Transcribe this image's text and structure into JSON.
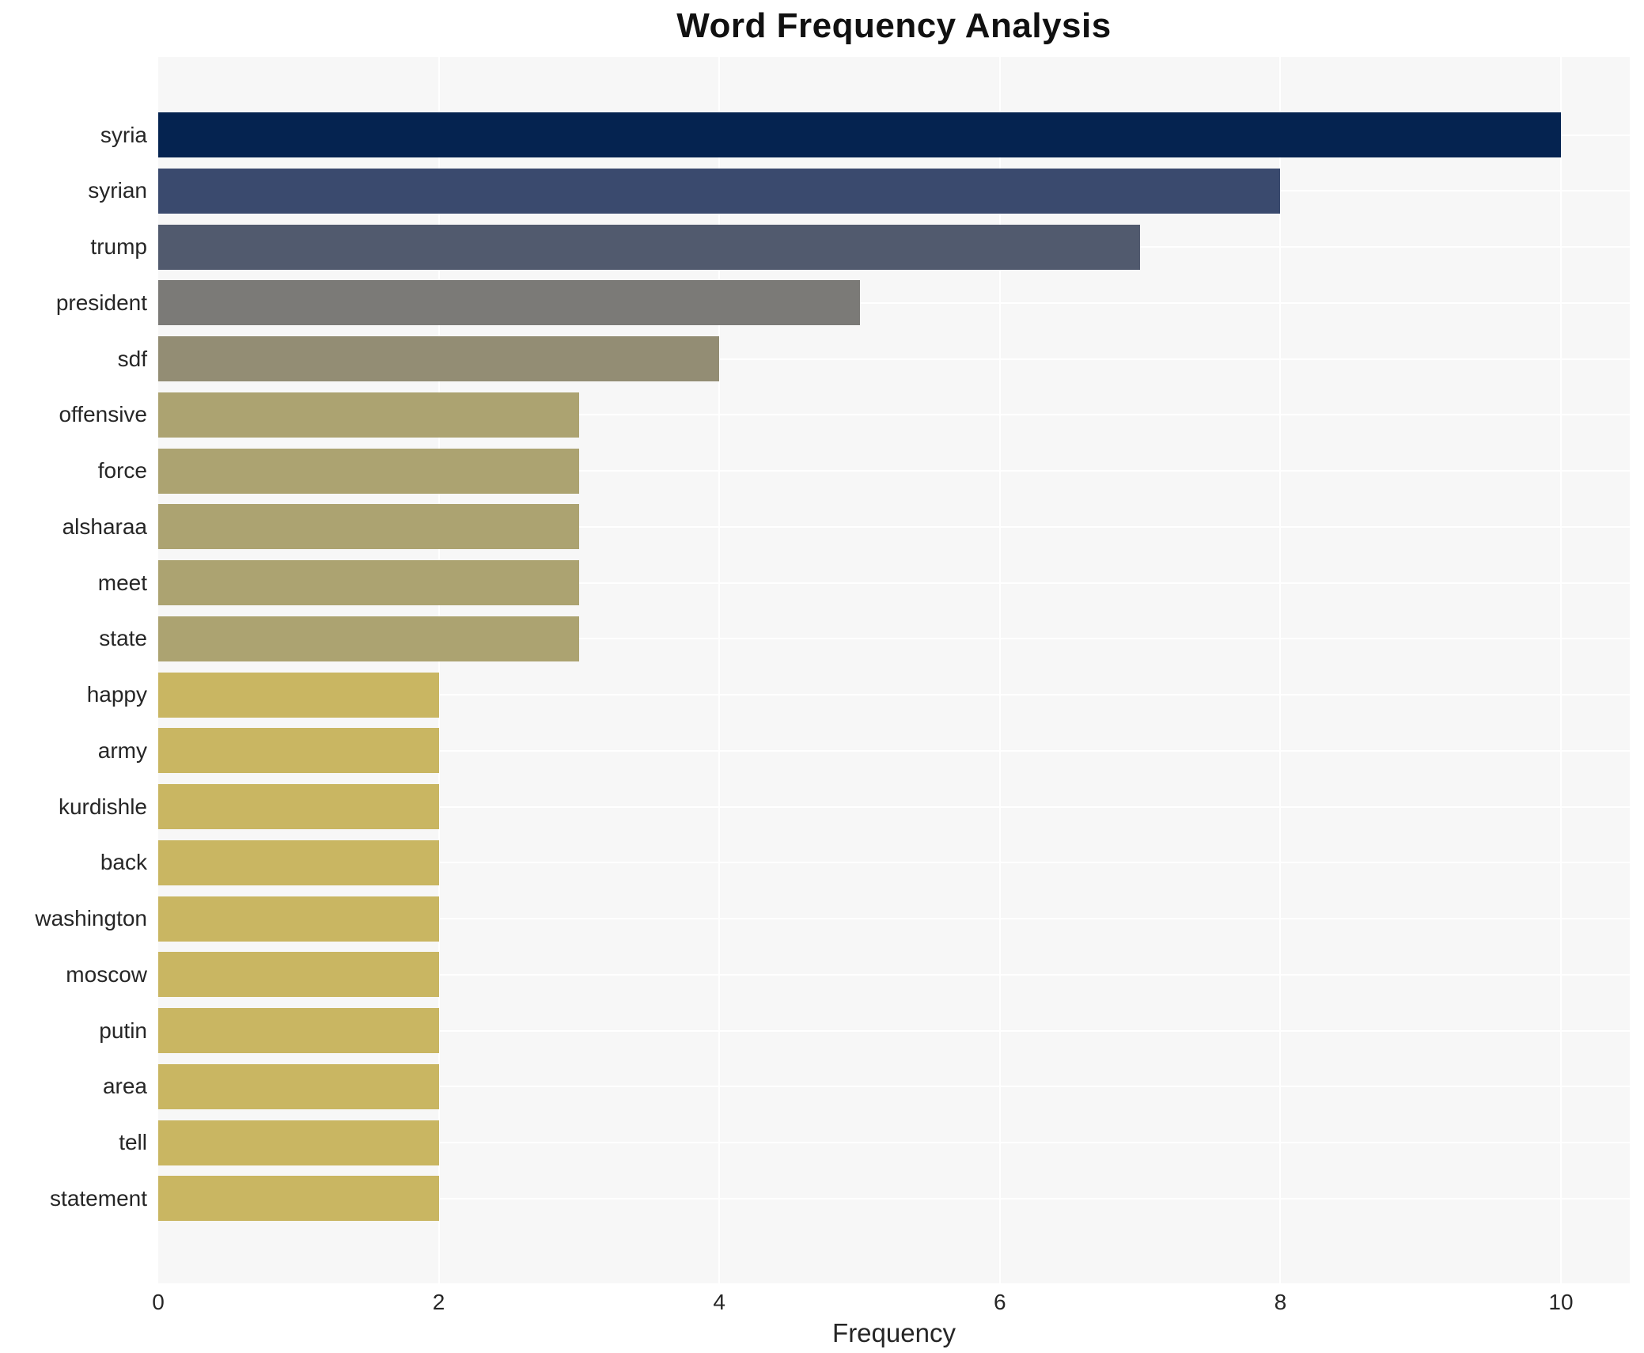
{
  "title": "Word Frequency Analysis",
  "x_axis": {
    "label": "Frequency",
    "ticks": [
      0,
      2,
      4,
      6,
      8,
      10
    ]
  },
  "style": {
    "plot_background": "#f7f7f7",
    "grid_color": "#ffffff",
    "text_color": "#262626",
    "title_color": "#111111"
  },
  "chart_data": {
    "type": "bar",
    "orientation": "horizontal",
    "title": "Word Frequency Analysis",
    "xlabel": "Frequency",
    "ylabel": "",
    "xlim": [
      0,
      10.5
    ],
    "grid": true,
    "legend": false,
    "categories": [
      "syria",
      "syrian",
      "trump",
      "president",
      "sdf",
      "offensive",
      "force",
      "alsharaa",
      "meet",
      "state",
      "happy",
      "army",
      "kurdishle",
      "back",
      "washington",
      "moscow",
      "putin",
      "area",
      "tell",
      "statement"
    ],
    "values": [
      10,
      8,
      7,
      5,
      4,
      3,
      3,
      3,
      3,
      3,
      2,
      2,
      2,
      2,
      2,
      2,
      2,
      2,
      2,
      2
    ],
    "bar_colors": [
      "#052350",
      "#3a4a6e",
      "#515a6e",
      "#7b7a77",
      "#938d74",
      "#aca371",
      "#aca371",
      "#aca371",
      "#aca371",
      "#aca371",
      "#c9b662",
      "#c9b662",
      "#c9b662",
      "#c9b662",
      "#c9b662",
      "#c9b662",
      "#c9b662",
      "#c9b662",
      "#c9b662",
      "#c9b662"
    ]
  }
}
